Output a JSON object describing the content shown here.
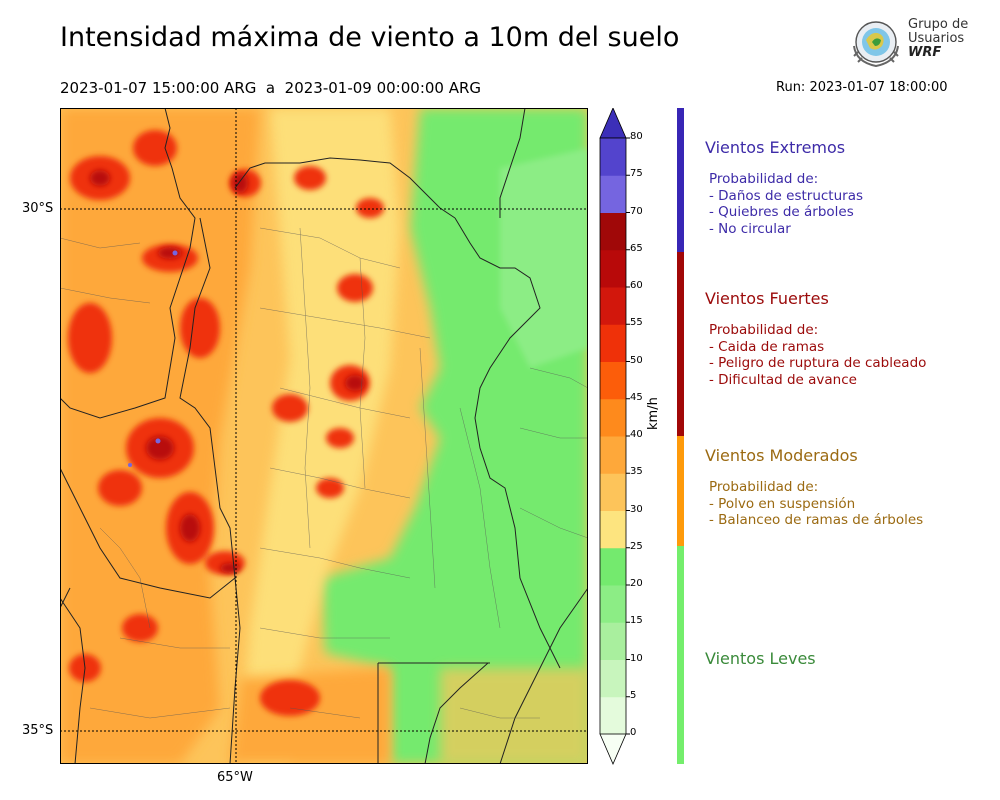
{
  "title": "Intensidad máxima de viento a 10m del suelo",
  "subtitle": "2023-01-07 15:00:00 ARG  a  2023-01-09 00:00:00 ARG",
  "run": "Run: 2023-01-07 18:00:00",
  "logo": {
    "line1": "Grupo de",
    "line2": "Usuarios",
    "line3": "WRF"
  },
  "map": {
    "lat_labels": [
      "30°S",
      "35°S"
    ],
    "lon_labels": [
      "65°W"
    ]
  },
  "colorbar": {
    "unit": "km/h",
    "ticks": [
      "80",
      "75",
      "70",
      "65",
      "60",
      "55",
      "50",
      "45",
      "40",
      "35",
      "30",
      "25",
      "20",
      "15",
      "10",
      "5",
      "0"
    ],
    "colors": [
      "#f7fff4",
      "#e4fbdc",
      "#c8f5bd",
      "#a9ef9e",
      "#8ced85",
      "#74ea6e",
      "#fde47f",
      "#fdc45a",
      "#fea83a",
      "#fe8a1c",
      "#fc5d0a",
      "#ef3109",
      "#d2170c",
      "#b80909",
      "#a00808",
      "#7565e0",
      "#5344cd",
      "#3c2fb8"
    ]
  },
  "categories": [
    {
      "title": "Vientos Extremos",
      "color": "#3d2ba8",
      "bar_color": "#3826b5",
      "prob_label": "Probabilidad de:",
      "items": [
        "- Daños de estructuras",
        "- Quiebres de árboles",
        "- No circular"
      ]
    },
    {
      "title": "Vientos Fuertes",
      "color": "#9b0a0a",
      "bar_color": "#a10707",
      "prob_label": "Probabilidad de:",
      "items": [
        "- Caida de ramas",
        "- Peligro de ruptura de cableado",
        "- Dificultad de avance"
      ]
    },
    {
      "title": "Vientos Moderados",
      "color": "#9b6a12",
      "bar_color": "#fe9a0a",
      "prob_label": "Probabilidad de:",
      "items": [
        "- Polvo en suspensión",
        "- Balanceo de ramas de árboles"
      ]
    },
    {
      "title": "Vientos Leves",
      "color": "#3a8a3a",
      "bar_color": "#74ee6c",
      "prob_label": "",
      "items": []
    }
  ]
}
